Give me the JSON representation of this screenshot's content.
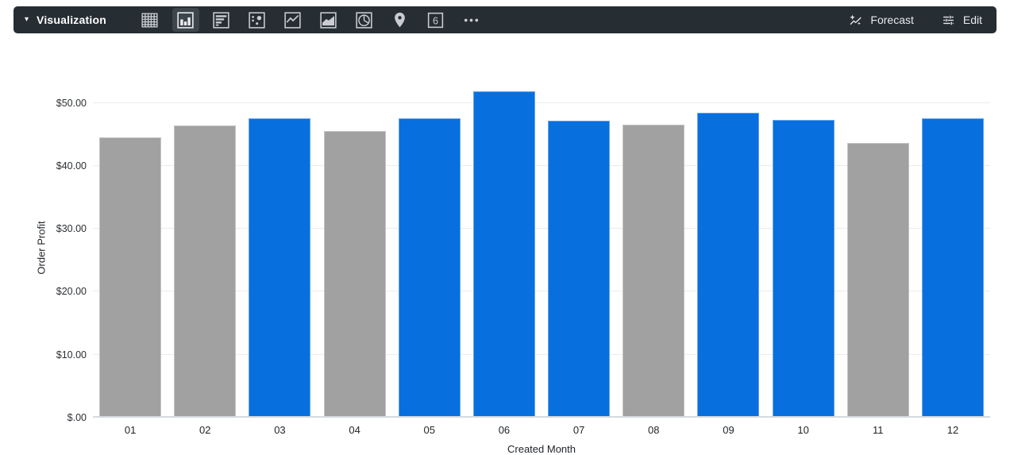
{
  "toolbar": {
    "title": "Visualization",
    "forecast_label": "Forecast",
    "edit_label": "Edit",
    "viz_types": [
      {
        "name": "table",
        "selected": false
      },
      {
        "name": "column",
        "selected": true
      },
      {
        "name": "bar",
        "selected": false
      },
      {
        "name": "scatter",
        "selected": false
      },
      {
        "name": "line",
        "selected": false
      },
      {
        "name": "area",
        "selected": false
      },
      {
        "name": "pie",
        "selected": false
      },
      {
        "name": "map-pin",
        "selected": false
      },
      {
        "name": "single-value",
        "selected": false,
        "glyph": "6"
      },
      {
        "name": "more",
        "selected": false
      }
    ],
    "colors": {
      "background": "#262D33",
      "selected_bg": "#3E464D",
      "icon": "#C9CDD1",
      "icon_selected": "#EDEFF1",
      "text": "#FFFFFF",
      "action_text": "#E8EAED"
    }
  },
  "chart_data": {
    "type": "bar",
    "title": "",
    "xlabel": "Created Month",
    "ylabel": "Order Profit",
    "categories": [
      "01",
      "02",
      "03",
      "04",
      "05",
      "06",
      "07",
      "08",
      "09",
      "10",
      "11",
      "12"
    ],
    "values": [
      44.5,
      46.4,
      47.6,
      45.5,
      47.6,
      51.9,
      47.2,
      46.6,
      48.5,
      47.3,
      43.7,
      47.5
    ],
    "bar_color_keys": [
      "gray",
      "gray",
      "blue",
      "gray",
      "blue",
      "blue",
      "blue",
      "gray",
      "blue",
      "blue",
      "gray",
      "blue"
    ],
    "palette": {
      "blue": "#0770DE",
      "blue_border": "#6AA4E8",
      "gray": "#A1A1A1",
      "gray_border": "#C4C4C4"
    },
    "y_ticks": [
      {
        "value": 0,
        "label": "$.00"
      },
      {
        "value": 10,
        "label": "$10.00"
      },
      {
        "value": 20,
        "label": "$20.00"
      },
      {
        "value": 30,
        "label": "$30.00"
      },
      {
        "value": 40,
        "label": "$40.00"
      },
      {
        "value": 50,
        "label": "$50.00"
      }
    ],
    "ylim": [
      0,
      55
    ],
    "grid": true,
    "legend": "none"
  }
}
